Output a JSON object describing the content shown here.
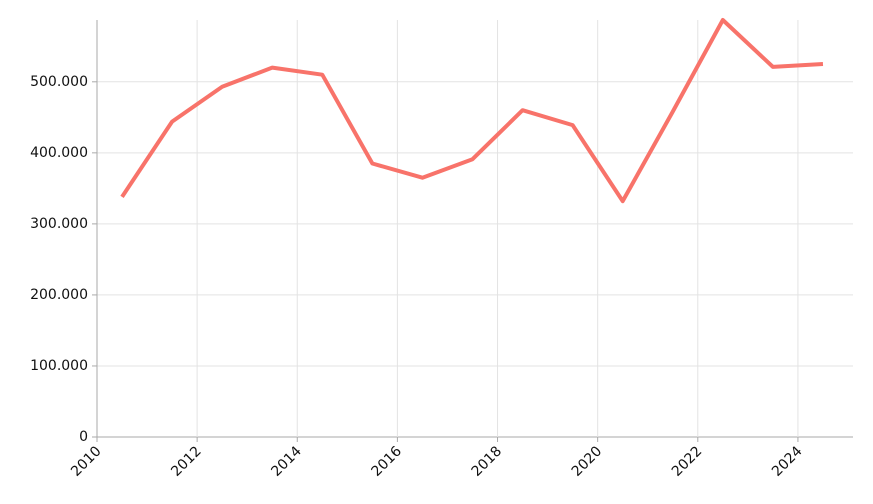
{
  "chart_data": {
    "type": "line",
    "x": [
      2010.5,
      2011.5,
      2012.5,
      2013.5,
      2014.5,
      2015.5,
      2016.5,
      2017.5,
      2018.5,
      2019.5,
      2020.5,
      2021.5,
      2022.5,
      2023.5,
      2024.5
    ],
    "series": [
      {
        "color": "#f8736a",
        "values": [
          338000,
          444000,
          493000,
          520000,
          510000,
          385000,
          365000,
          391000,
          460000,
          439000,
          332000,
          458000,
          587000,
          521000,
          525000
        ]
      }
    ],
    "xlim": [
      2010,
      2025.1
    ],
    "xticks": [
      2010,
      2012,
      2014,
      2016,
      2018,
      2020,
      2022,
      2024
    ],
    "ylim": [
      0,
      587000
    ],
    "yticks": [
      0,
      {
        "value": 100000,
        "label": "100.000"
      },
      {
        "value": 200000,
        "label": "200.000"
      },
      {
        "value": 300000,
        "label": "300.000"
      },
      {
        "value": 400000,
        "label": "400.000"
      },
      {
        "value": 500000,
        "label": "500.000"
      }
    ],
    "grid": true
  }
}
